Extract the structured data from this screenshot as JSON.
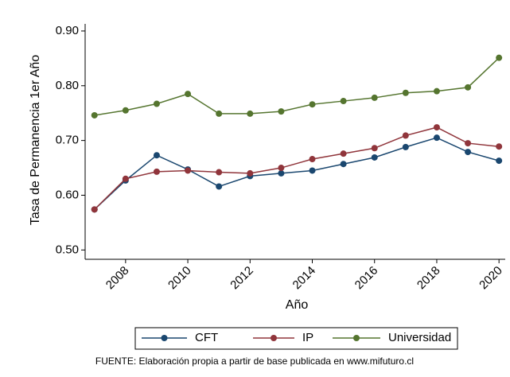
{
  "chart_data": {
    "type": "line",
    "x": [
      2007,
      2008,
      2009,
      2010,
      2011,
      2012,
      2013,
      2014,
      2015,
      2016,
      2017,
      2018,
      2019,
      2020
    ],
    "xlim": [
      2006.7,
      2020.2
    ],
    "xticks": [
      2008,
      2010,
      2012,
      2014,
      2016,
      2018,
      2020
    ],
    "ylim": [
      0.483,
      0.913
    ],
    "yticks": [
      {
        "value": 0.5,
        "label": "0.50"
      },
      {
        "value": 0.6,
        "label": "0.60"
      },
      {
        "value": 0.7,
        "label": "0.70"
      },
      {
        "value": 0.8,
        "label": "0.80"
      },
      {
        "value": 0.9,
        "label": "0.90"
      }
    ],
    "xlabel": "Año",
    "ylabel": "Tasa de Permanencia 1er Año",
    "grid": false,
    "legend": "bottom",
    "note": "FUENTE: Elaboración propia a partir de base publicada en www.mifuturo.cl",
    "series": [
      {
        "name": "CFT",
        "color": "#1a476f",
        "values": [
          0.574,
          0.627,
          0.673,
          0.647,
          0.616,
          0.635,
          0.64,
          0.645,
          0.657,
          0.669,
          0.688,
          0.705,
          0.679,
          0.663
        ]
      },
      {
        "name": "IP",
        "color": "#90353b",
        "values": [
          0.574,
          0.63,
          0.643,
          0.645,
          0.642,
          0.64,
          0.65,
          0.666,
          0.676,
          0.686,
          0.709,
          0.724,
          0.695,
          0.689
        ]
      },
      {
        "name": "Universidad",
        "color": "#55752f",
        "values": [
          0.746,
          0.755,
          0.767,
          0.785,
          0.749,
          0.749,
          0.753,
          0.766,
          0.772,
          0.778,
          0.787,
          0.79,
          0.797,
          0.851
        ]
      }
    ]
  }
}
